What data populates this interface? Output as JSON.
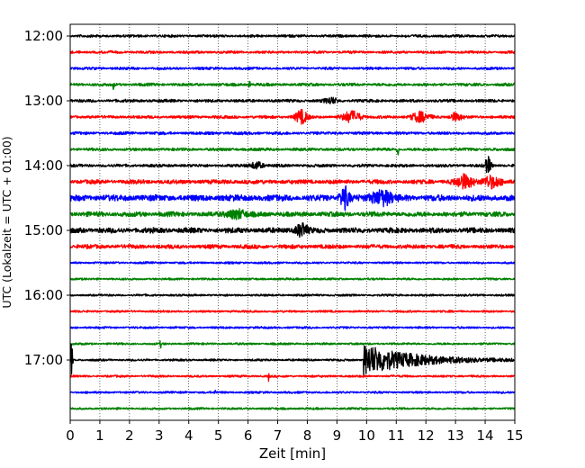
{
  "chart_data": {
    "type": "line",
    "title": "",
    "xlabel": "Zeit  [min]",
    "ylabel": "UTC (Lokalzeit = UTC + 01:00)",
    "xlim": [
      0,
      15
    ],
    "x_ticks": [
      "0",
      "1",
      "2",
      "3",
      "4",
      "5",
      "6",
      "7",
      "8",
      "9",
      "10",
      "11",
      "12",
      "13",
      "14",
      "15"
    ],
    "y_ticks": [
      "12:00",
      "13:00",
      "14:00",
      "15:00",
      "16:00",
      "17:00"
    ],
    "grid": "vertical dotted lines at each minute",
    "legend": "none",
    "trace_colors": [
      "#000000",
      "#ff0000",
      "#0000ff",
      "#008000"
    ],
    "series": [
      {
        "start": "12:00",
        "base_amp": 1.6,
        "events": []
      },
      {
        "start": "12:15",
        "base_amp": 1.6,
        "events": []
      },
      {
        "start": "12:30",
        "base_amp": 1.6,
        "events": []
      },
      {
        "start": "12:45",
        "base_amp": 1.8,
        "events": [
          {
            "t": 1.47,
            "amp": 8,
            "width": 0.02
          },
          {
            "t": 6.05,
            "amp": 5,
            "width": 0.02
          }
        ]
      },
      {
        "start": "13:00",
        "base_amp": 1.8,
        "events": [
          {
            "t": 8.8,
            "amp": 3,
            "width": 0.2
          }
        ]
      },
      {
        "start": "13:15",
        "base_amp": 1.8,
        "events": [
          {
            "t": 7.8,
            "amp": 7,
            "width": 0.2
          },
          {
            "t": 9.5,
            "amp": 6,
            "width": 0.3
          },
          {
            "t": 11.8,
            "amp": 5,
            "width": 0.3
          },
          {
            "t": 13.0,
            "amp": 4,
            "width": 0.2
          }
        ]
      },
      {
        "start": "13:30",
        "base_amp": 1.8,
        "events": []
      },
      {
        "start": "13:45",
        "base_amp": 1.8,
        "events": [
          {
            "t": 11.05,
            "amp": 14,
            "width": 0.02
          }
        ]
      },
      {
        "start": "14:00",
        "base_amp": 1.8,
        "events": [
          {
            "t": 6.3,
            "amp": 4,
            "width": 0.2
          },
          {
            "t": 14.1,
            "amp": 9,
            "width": 0.1
          }
        ]
      },
      {
        "start": "14:15",
        "base_amp": 2.6,
        "events": [
          {
            "t": 13.3,
            "amp": 7,
            "width": 0.3
          },
          {
            "t": 14.2,
            "amp": 6,
            "width": 0.3
          }
        ]
      },
      {
        "start": "14:30",
        "base_amp": 3.8,
        "events": [
          {
            "t": 9.25,
            "amp": 12,
            "width": 0.15
          },
          {
            "t": 10.5,
            "amp": 8,
            "width": 0.35
          }
        ]
      },
      {
        "start": "14:45",
        "base_amp": 3.0,
        "events": [
          {
            "t": 5.6,
            "amp": 5,
            "width": 0.3
          }
        ]
      },
      {
        "start": "15:00",
        "base_amp": 3.2,
        "events": [
          {
            "t": 7.8,
            "amp": 7,
            "width": 0.2
          }
        ]
      },
      {
        "start": "15:15",
        "base_amp": 2.5,
        "events": []
      },
      {
        "start": "15:30",
        "base_amp": 1.3,
        "events": []
      },
      {
        "start": "15:45",
        "base_amp": 1.3,
        "events": []
      },
      {
        "start": "16:00",
        "base_amp": 1.3,
        "events": []
      },
      {
        "start": "16:15",
        "base_amp": 1.3,
        "events": []
      },
      {
        "start": "16:30",
        "base_amp": 1.3,
        "events": []
      },
      {
        "start": "16:45",
        "base_amp": 1.3,
        "events": [
          {
            "t": 3.05,
            "amp": 4,
            "width": 0.02
          }
        ]
      },
      {
        "start": "17:00",
        "base_amp": 1.3,
        "events": [
          {
            "t": 0.05,
            "amp": 24,
            "width": 0.03
          },
          {
            "t": 9.9,
            "amp": 17,
            "width": 1.6
          }
        ]
      },
      {
        "start": "17:15",
        "base_amp": 1.3,
        "events": [
          {
            "t": 6.7,
            "amp": 6,
            "width": 0.02
          }
        ]
      },
      {
        "start": "17:30",
        "base_amp": 1.3,
        "events": [
          {
            "t": 4.9,
            "amp": 3,
            "width": 0.02
          }
        ]
      },
      {
        "start": "17:45",
        "base_amp": 1.3,
        "events": []
      }
    ]
  }
}
